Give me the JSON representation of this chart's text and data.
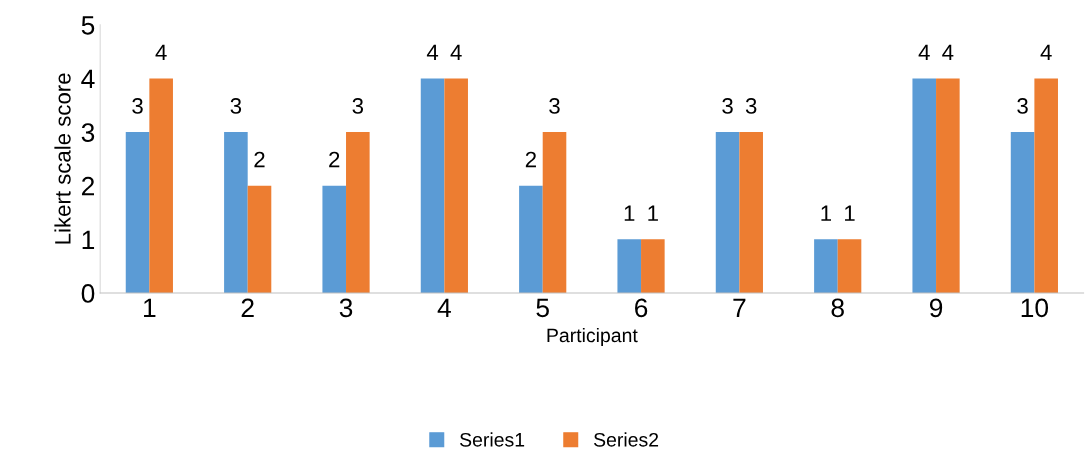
{
  "chart_data": {
    "type": "bar",
    "xlabel": "Participant",
    "ylabel": "Likert scale score",
    "categories": [
      "1",
      "2",
      "3",
      "4",
      "5",
      "6",
      "7",
      "8",
      "9",
      "10"
    ],
    "series": [
      {
        "name": "Series1",
        "color": "#5b9bd5",
        "values": [
          3,
          3,
          2,
          4,
          2,
          1,
          3,
          1,
          4,
          3
        ]
      },
      {
        "name": "Series2",
        "color": "#ed7d31",
        "values": [
          4,
          2,
          3,
          4,
          3,
          1,
          3,
          1,
          4,
          4
        ]
      }
    ],
    "ylim": [
      0,
      5
    ],
    "yticks": [
      0,
      1,
      2,
      3,
      4,
      5
    ],
    "grid": false,
    "legend": "bottom",
    "data_labels": true
  }
}
